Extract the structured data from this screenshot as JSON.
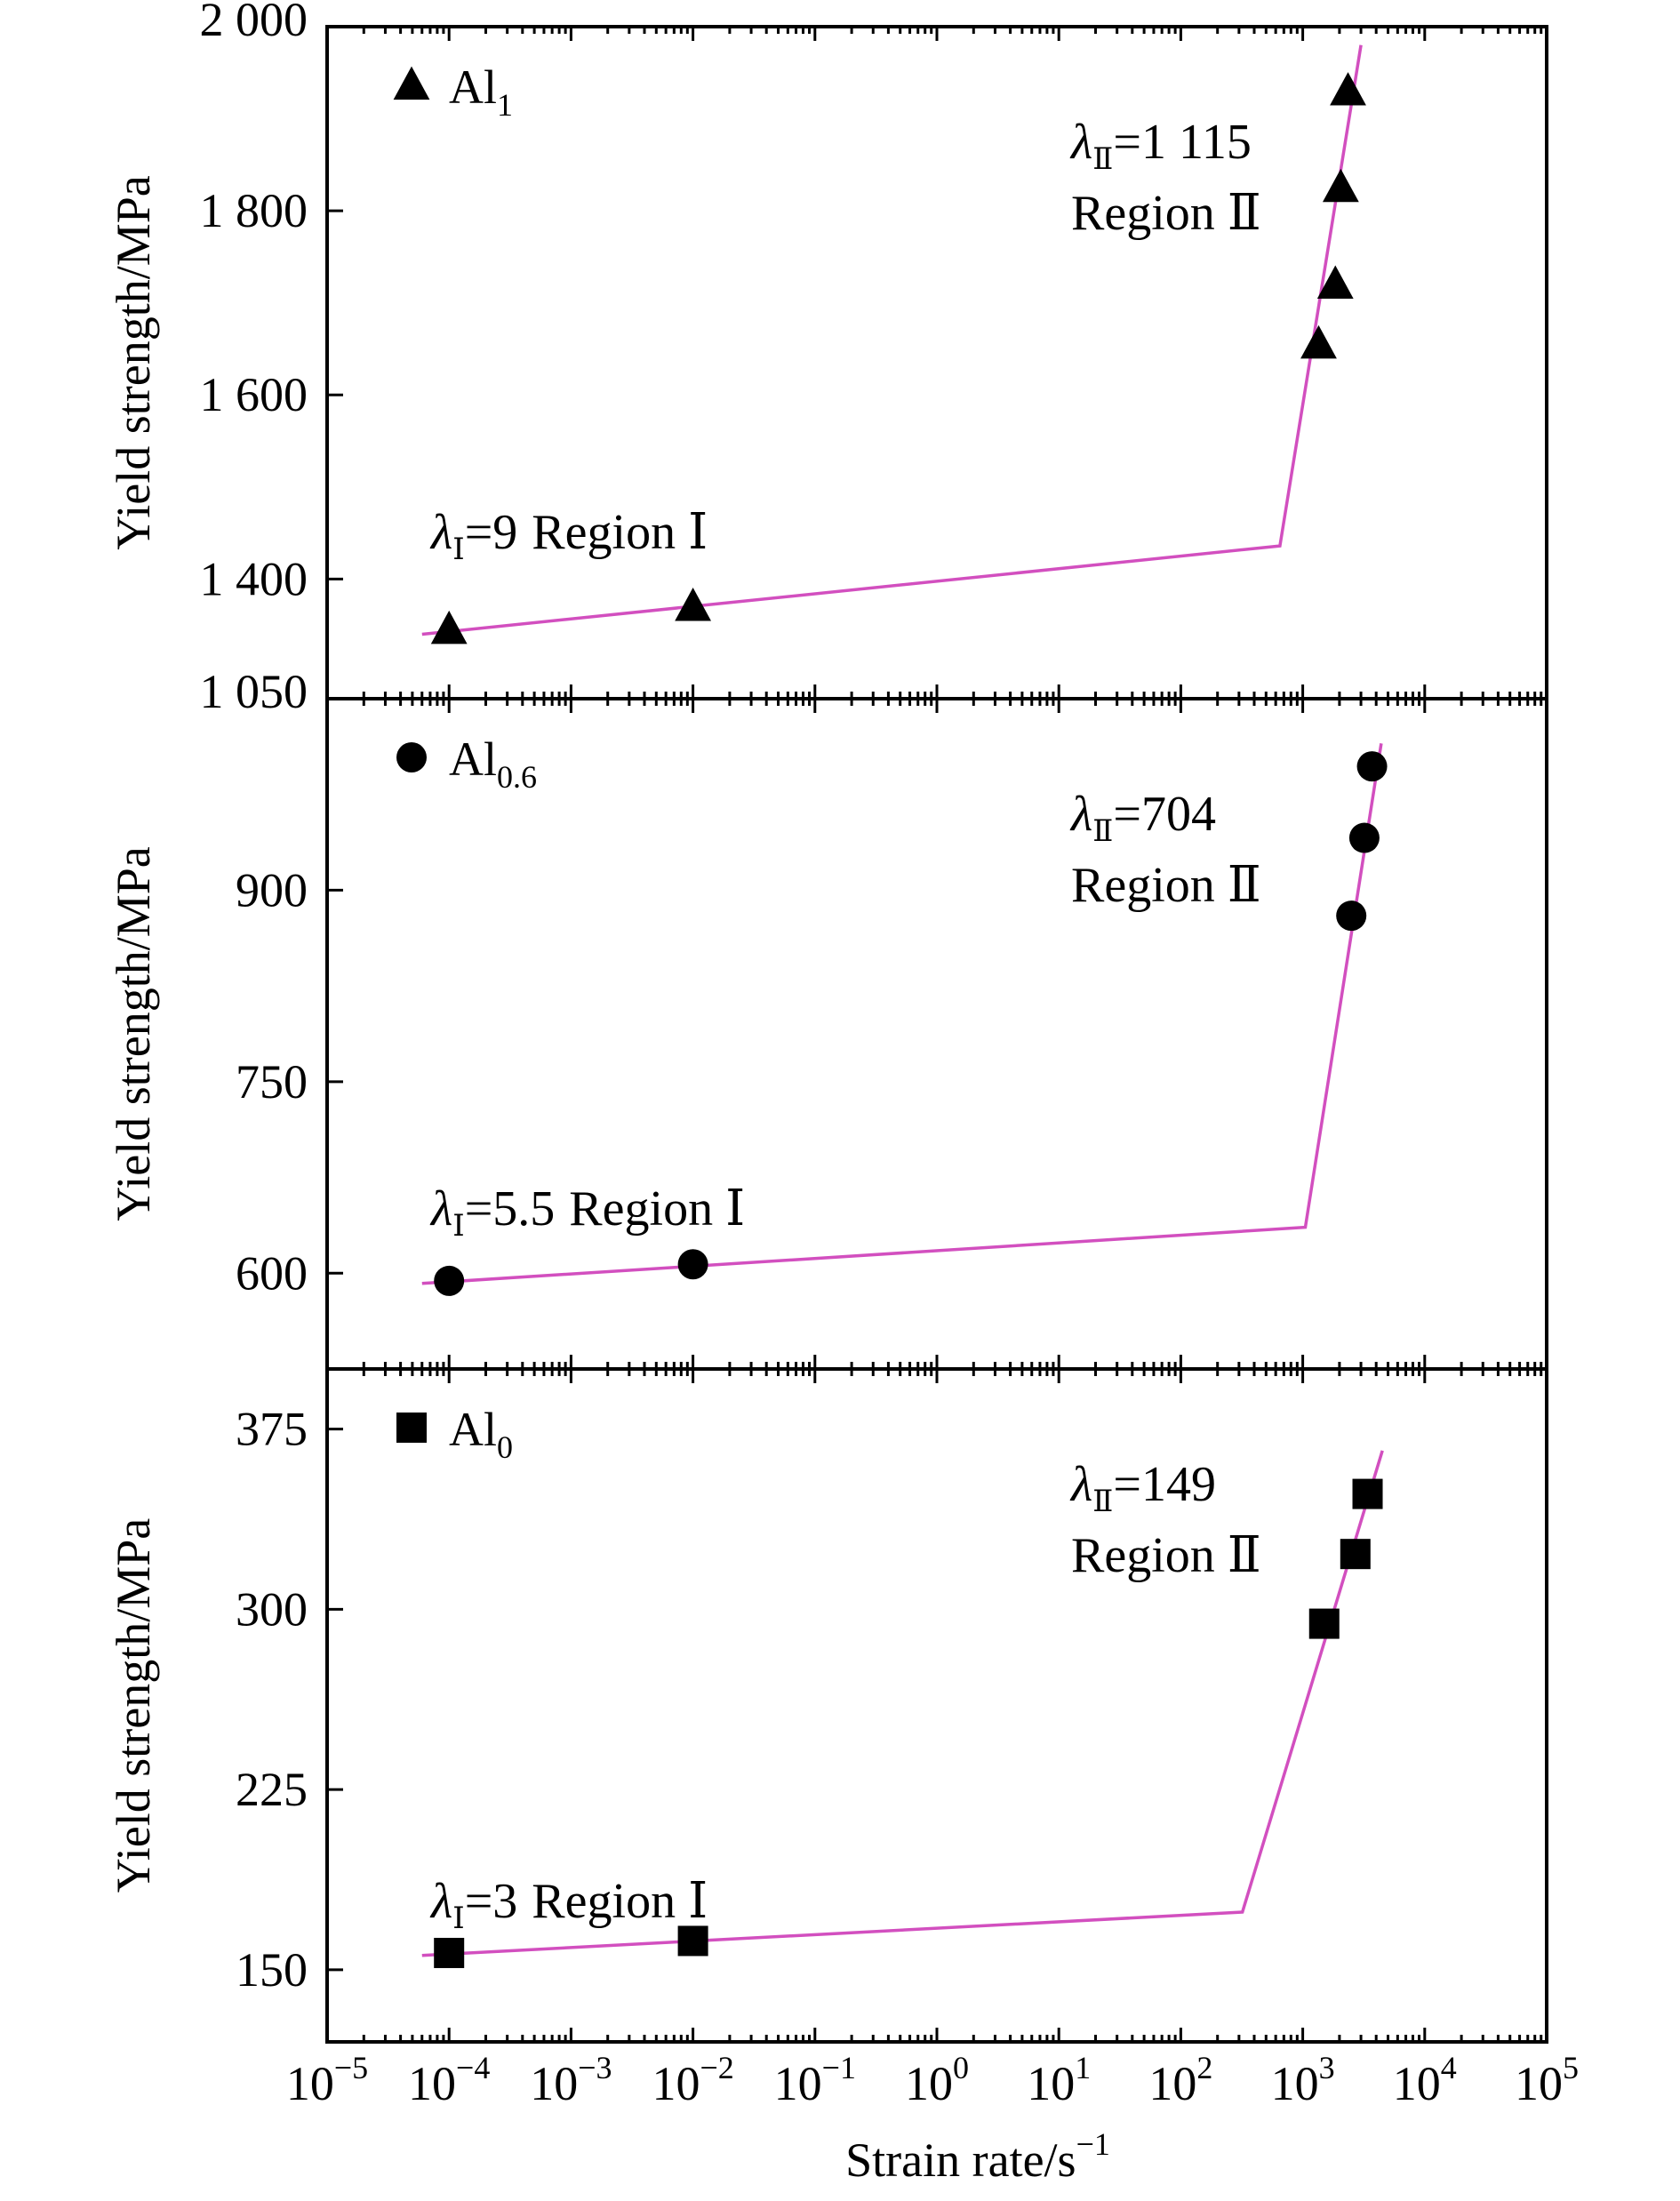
{
  "chart_data": {
    "type": "scatter",
    "x_axis": {
      "label": "Strain rate/s",
      "label_superscript": "−1",
      "scale": "log",
      "range": [
        1e-05,
        100000
      ],
      "tick_values": [
        1e-05,
        0.0001,
        0.001,
        0.01,
        0.1,
        1,
        10,
        100,
        1000,
        10000,
        100000
      ],
      "tick_base": "10",
      "tick_exponents": [
        "−5",
        "−4",
        "−3",
        "−2",
        "−1",
        "0",
        "1",
        "2",
        "3",
        "4",
        "5"
      ]
    },
    "panels": [
      {
        "legend_base": "Al",
        "legend_sub": "1",
        "marker": "triangle",
        "ylabel": "Yield strength/MPa",
        "ylim": [
          1270,
          2000
        ],
        "yticks": [
          1400,
          1600,
          1800,
          2000
        ],
        "ytick_labels": [
          "1 400",
          "1 600",
          "1 800",
          "2 000"
        ],
        "points": [
          {
            "x": 0.0001,
            "y": 1345
          },
          {
            "x": 0.01,
            "y": 1370
          },
          {
            "x": 1350,
            "y": 1655
          },
          {
            "x": 1850,
            "y": 1720
          },
          {
            "x": 2050,
            "y": 1825
          },
          {
            "x": 2350,
            "y": 1930
          }
        ],
        "fit_line": [
          {
            "x": 6e-05,
            "y": 1340
          },
          {
            "x": 650,
            "y": 1436
          },
          {
            "x": 3000,
            "y": 1980
          }
        ],
        "region1": {
          "lambda_sub": "Ⅰ",
          "value": "=9",
          "text": "Region Ⅰ"
        },
        "region2": {
          "lambda_sub": "Ⅱ",
          "value": "=1 115",
          "text": "Region Ⅱ"
        }
      },
      {
        "legend_base": "Al",
        "legend_sub": "0.6",
        "marker": "circle",
        "ylabel": "Yield strength/MPa",
        "ylim": [
          525,
          1050
        ],
        "yticks": [
          600,
          750,
          900,
          1050
        ],
        "ytick_labels": [
          "600",
          "750",
          "900",
          "1 050"
        ],
        "points": [
          {
            "x": 0.0001,
            "y": 594
          },
          {
            "x": 0.01,
            "y": 607
          },
          {
            "x": 2500,
            "y": 880
          },
          {
            "x": 3200,
            "y": 941
          },
          {
            "x": 3700,
            "y": 997
          }
        ],
        "fit_line": [
          {
            "x": 6e-05,
            "y": 592
          },
          {
            "x": 1050,
            "y": 636
          },
          {
            "x": 4400,
            "y": 1015
          }
        ],
        "region1": {
          "lambda_sub": "Ⅰ",
          "value": "=5.5",
          "text": "Region Ⅰ"
        },
        "region2": {
          "lambda_sub": "Ⅱ",
          "value": "=704",
          "text": "Region Ⅱ"
        }
      },
      {
        "legend_base": "Al",
        "legend_sub": "0",
        "marker": "square",
        "ylabel": "Yield strength/MPa",
        "ylim": [
          120,
          400
        ],
        "yticks": [
          150,
          225,
          300,
          375
        ],
        "ytick_labels": [
          "150",
          "225",
          "300",
          "375"
        ],
        "points": [
          {
            "x": 0.0001,
            "y": 157
          },
          {
            "x": 0.01,
            "y": 162
          },
          {
            "x": 1500,
            "y": 294
          },
          {
            "x": 2700,
            "y": 323
          },
          {
            "x": 3400,
            "y": 348
          }
        ],
        "fit_line": [
          {
            "x": 6e-05,
            "y": 156
          },
          {
            "x": 320,
            "y": 174
          },
          {
            "x": 4500,
            "y": 366
          }
        ],
        "region1": {
          "lambda_sub": "Ⅰ",
          "value": "=3",
          "text": "Region Ⅰ"
        },
        "region2": {
          "lambda_sub": "Ⅱ",
          "value": "=149",
          "text": "Region Ⅱ"
        }
      }
    ]
  }
}
